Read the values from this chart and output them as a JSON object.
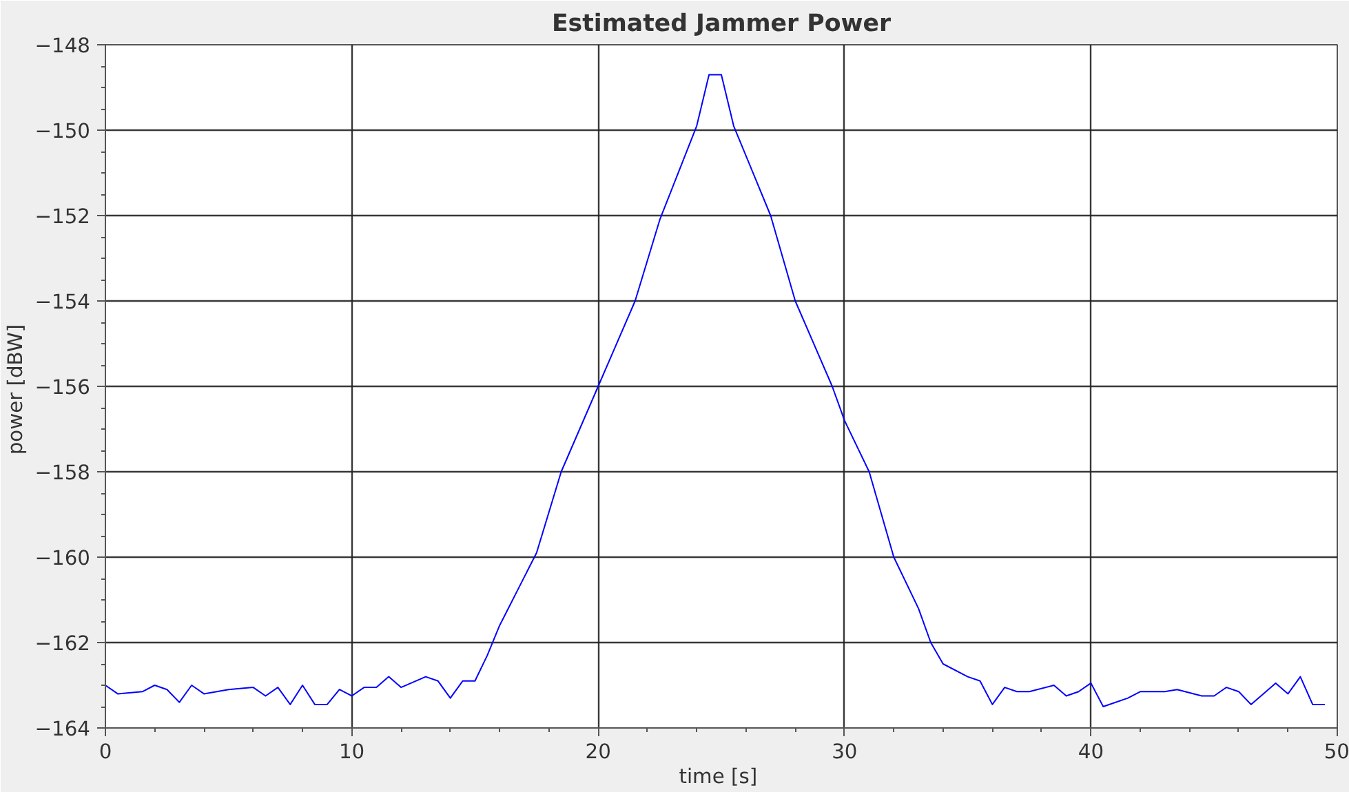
{
  "chart_data": {
    "type": "line",
    "title": "Estimated Jammer Power",
    "xlabel": "time  [s]",
    "ylabel": "power  [dBW]",
    "x": [
      0,
      0.5,
      1.5,
      2,
      2.5,
      3,
      3.5,
      4,
      5,
      6,
      6.5,
      7,
      7.5,
      8,
      8.5,
      9,
      9.5,
      10,
      10.5,
      11,
      11.5,
      12,
      13,
      13.5,
      14,
      14.5,
      15,
      15.5,
      16,
      17.5,
      18.5,
      20,
      21.5,
      22.5,
      24,
      24.5,
      25,
      25.5,
      27,
      28,
      29.5,
      30,
      31,
      32,
      33,
      33.5,
      34,
      35,
      35.5,
      36,
      36.5,
      37,
      37.5,
      38.5,
      39,
      39.5,
      40,
      40.5,
      41.5,
      42,
      43,
      43.5,
      44.5,
      45,
      45.5,
      46,
      46.5,
      47,
      47.5,
      48,
      48.5,
      49,
      49.5
    ],
    "series": [
      {
        "color": "#0000ff",
        "values": [
          -163.0,
          -163.2,
          -163.15,
          -163.0,
          -163.1,
          -163.4,
          -163.0,
          -163.2,
          -163.1,
          -163.05,
          -163.25,
          -163.05,
          -163.45,
          -163.0,
          -163.45,
          -163.45,
          -163.1,
          -163.25,
          -163.05,
          -163.05,
          -162.8,
          -163.05,
          -162.8,
          -162.9,
          -163.3,
          -162.9,
          -162.9,
          -162.3,
          -161.6,
          -159.9,
          -158.0,
          -156.0,
          -154.0,
          -152.1,
          -149.9,
          -148.7,
          -148.7,
          -149.9,
          -152.0,
          -154.0,
          -156.0,
          -156.8,
          -158.0,
          -160.0,
          -161.2,
          -162.0,
          -162.5,
          -162.8,
          -162.9,
          -163.45,
          -163.05,
          -163.15,
          -163.15,
          -163.0,
          -163.25,
          -163.15,
          -162.95,
          -163.5,
          -163.3,
          -163.15,
          -163.15,
          -163.1,
          -163.25,
          -163.25,
          -163.05,
          -163.15,
          -163.45,
          -163.2,
          -162.95,
          -163.2,
          -162.8,
          -163.45,
          -163.45
        ]
      }
    ],
    "xlim": [
      0,
      50
    ],
    "ylim": [
      -164,
      -148
    ],
    "xticks": [
      0,
      10,
      20,
      30,
      40,
      50
    ],
    "yticks": [
      -164,
      -162,
      -160,
      -158,
      -156,
      -154,
      -152,
      -150,
      -148
    ],
    "grid": true
  }
}
